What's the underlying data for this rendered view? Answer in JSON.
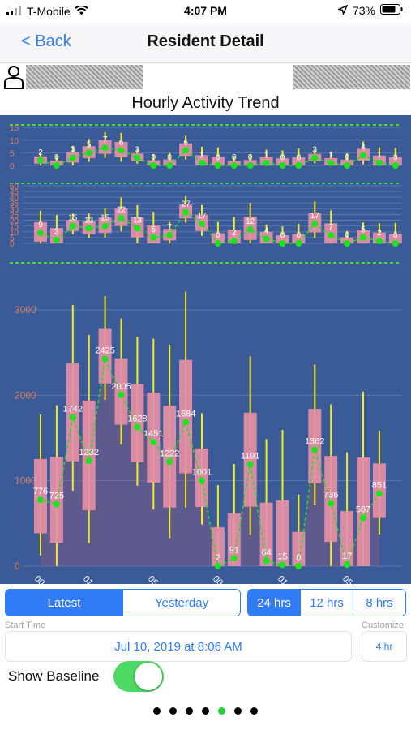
{
  "status_bar": {
    "carrier": "T-Mobile",
    "time": "4:07 PM",
    "battery": "73%",
    "icons": [
      "signal-icon",
      "wifi-icon",
      "location-arrow-icon",
      "battery-icon"
    ]
  },
  "nav": {
    "back_label": "< Back",
    "title": "Resident Detail"
  },
  "resident": {
    "icon": "person-icon"
  },
  "chart_title": "Hourly Activity Trend",
  "chart_data": [
    {
      "type": "candlestick-line",
      "yticks": [
        0,
        5,
        10,
        15
      ],
      "labels": [
        "2",
        "0",
        "3",
        "5",
        "7",
        "6",
        "3",
        "0",
        "0",
        "6",
        "1",
        "0",
        "0",
        "0",
        "1",
        "0",
        "0",
        "3",
        "1",
        "0",
        "4",
        "1",
        "0"
      ],
      "values": [
        2,
        0,
        3,
        5,
        7,
        6,
        3,
        0,
        0,
        6,
        1,
        0,
        0,
        0,
        1,
        0,
        0,
        3,
        1,
        0,
        4,
        1,
        0
      ]
    },
    {
      "type": "candlestick-line",
      "yticks": [
        0,
        5,
        10,
        15,
        20,
        25,
        30,
        35,
        40,
        45,
        50
      ],
      "labels": [
        "9",
        "3",
        "15",
        "13",
        "15",
        "22",
        "13",
        "5",
        "7",
        "27",
        "17",
        "0",
        "2",
        "12",
        "4",
        "0",
        "0",
        "17",
        "7",
        "0",
        "5",
        "2",
        "0"
      ],
      "values": [
        9,
        3,
        15,
        13,
        15,
        22,
        13,
        5,
        7,
        27,
        17,
        0,
        2,
        12,
        4,
        0,
        0,
        17,
        7,
        0,
        5,
        2,
        0
      ]
    },
    {
      "type": "candlestick-line",
      "yticks": [
        0,
        1000,
        2000,
        3000
      ],
      "ytick_labels": [
        "0",
        "1000",
        "2000",
        "3000"
      ],
      "labels": [
        "776",
        "725",
        "1742",
        "1232",
        "2425",
        "2005",
        "1628",
        "1451",
        "1222",
        "1684",
        "1001",
        "2",
        "91",
        "1191",
        "64",
        "15",
        "0",
        "1362",
        "736",
        "17",
        "567",
        "851",
        ""
      ],
      "values": [
        776,
        725,
        1742,
        1232,
        2425,
        2005,
        1628,
        1451,
        1222,
        1684,
        1001,
        2,
        91,
        1191,
        64,
        15,
        0,
        1362,
        736,
        17,
        567,
        851,
        null
      ],
      "xtick_labels": [
        "00",
        "01",
        "05",
        "00",
        "01",
        "05"
      ]
    }
  ],
  "range_tabs": [
    "Latest",
    "Yesterday"
  ],
  "active_range": "Latest",
  "duration_tabs": [
    "24 hrs",
    "12 hrs",
    "8 hrs"
  ],
  "active_duration": "24 hrs",
  "start_time_label": "Start Time",
  "start_time_value": "Jul 10, 2019 at 8:06 AM",
  "customize_label": "Customize",
  "customize_value": "4 hr",
  "baseline_label": "Show Baseline",
  "baseline_on": true,
  "pager": {
    "count": 7,
    "active": 4
  },
  "colors": {
    "accent": "#2f7cf6",
    "chart_bg": "#3b5a98",
    "box": "#e58fa6",
    "whisker": "#f2ee1c",
    "point": "#1de21d",
    "toggle_on": "#4cd964"
  }
}
